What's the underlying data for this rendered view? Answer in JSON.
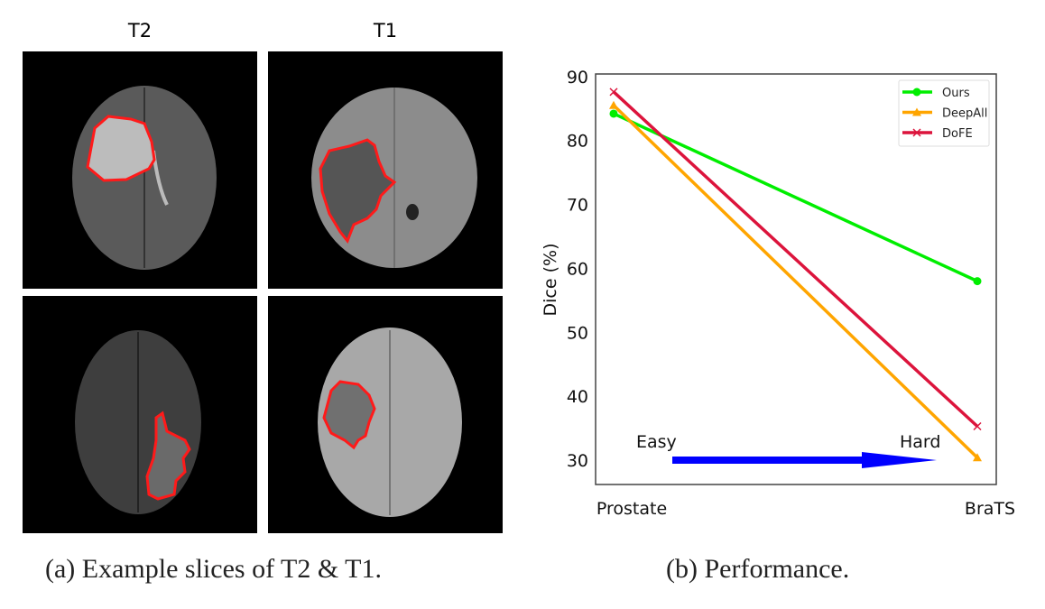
{
  "figure_a": {
    "columns": [
      "T2",
      "T1"
    ],
    "caption": "(a) Example slices of T2 & T1.",
    "contour_color": "#ff1a1a"
  },
  "figure_b": {
    "caption": "(b) Performance."
  },
  "chart_data": {
    "type": "line",
    "categories": [
      "Prostate",
      "BraTS"
    ],
    "ylabel": "Dice (%)",
    "xlabel": "",
    "ylim": [
      26.2,
      90.4
    ],
    "yticks": [
      30,
      40,
      50,
      60,
      70,
      80,
      90
    ],
    "grid": false,
    "legend_position": "top-right",
    "series": [
      {
        "name": "Ours",
        "values": [
          84.2,
          58.0
        ],
        "color": "#00ee00",
        "marker": "circle"
      },
      {
        "name": "DeepAll",
        "values": [
          85.5,
          30.4
        ],
        "color": "#ffa500",
        "marker": "triangle"
      },
      {
        "name": "DoFE",
        "values": [
          87.6,
          35.3
        ],
        "color": "#dc143c",
        "marker": "x"
      }
    ],
    "annotations": {
      "easy": "Easy",
      "hard": "Hard",
      "annotation_color": "#ff0000",
      "arrow_color": "#0000ff"
    }
  }
}
